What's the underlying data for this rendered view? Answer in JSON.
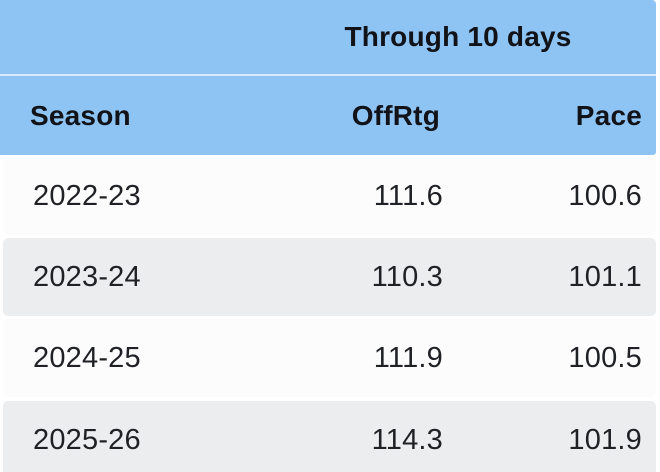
{
  "table": {
    "top_header": "Through 10 days",
    "columns": [
      {
        "label": "Season"
      },
      {
        "label": "OffRtg"
      },
      {
        "label": "Pace"
      }
    ],
    "rows": [
      {
        "season": "2022-23",
        "offrtg": "111.6",
        "pace": "100.6"
      },
      {
        "season": "2023-24",
        "offrtg": "110.3",
        "pace": "101.1"
      },
      {
        "season": "2024-25",
        "offrtg": "111.9",
        "pace": "100.5"
      },
      {
        "season": "2025-26",
        "offrtg": "114.3",
        "pace": "101.9"
      }
    ]
  },
  "chart_data": {
    "type": "table",
    "title": "Through 10 days",
    "columns": [
      "Season",
      "OffRtg",
      "Pace"
    ],
    "rows": [
      [
        "2022-23",
        111.6,
        100.6
      ],
      [
        "2023-24",
        110.3,
        101.1
      ],
      [
        "2024-25",
        111.9,
        100.5
      ],
      [
        "2025-26",
        114.3,
        101.9
      ]
    ],
    "layout_hints": {
      "header_background": "blue",
      "zebra_striping": true,
      "numeric_columns_right_aligned": true
    }
  },
  "colors": {
    "header_blue": "#8ec4f4",
    "header_divider": "#dcebfc",
    "row_light": "#fcfcfd",
    "row_alt": "#ebedee",
    "page_bg": "#ffffff",
    "text_header": "#111318",
    "text_data": "#1f2125"
  }
}
